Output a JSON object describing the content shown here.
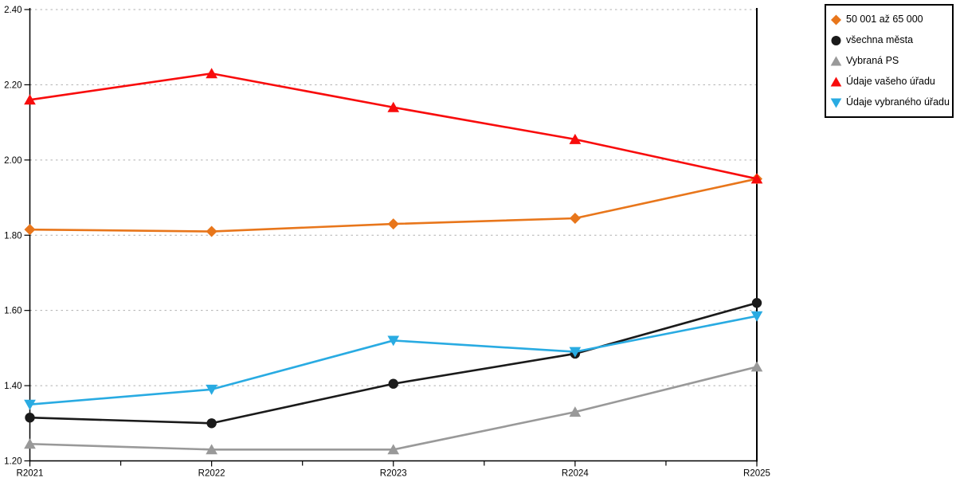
{
  "chart_data": {
    "type": "line",
    "categories": [
      "R2021",
      "R2022",
      "R2023",
      "R2024",
      "R2025"
    ],
    "series": [
      {
        "name": "50 001 až 65 000",
        "color": "#E8761B",
        "marker": "diamond",
        "values": [
          1.815,
          1.81,
          1.83,
          1.845,
          1.95
        ]
      },
      {
        "name": "všechna města",
        "color": "#1A1A1A",
        "marker": "circle",
        "values": [
          1.315,
          1.3,
          1.405,
          1.485,
          1.62
        ]
      },
      {
        "name": "Vybraná PS",
        "color": "#999999",
        "marker": "triangle-up",
        "values": [
          1.245,
          1.23,
          1.23,
          1.33,
          1.45
        ]
      },
      {
        "name": "Údaje vašeho úřadu",
        "color": "#F80C0C",
        "marker": "triangle-up",
        "values": [
          2.16,
          2.23,
          2.14,
          2.055,
          1.95
        ]
      },
      {
        "name": "Údaje vybraného úřadu",
        "color": "#29ABE2",
        "marker": "triangle-down",
        "values": [
          1.35,
          1.39,
          1.52,
          1.49,
          1.585
        ]
      }
    ],
    "ylim": [
      1.2,
      2.4
    ],
    "ytick_step": 0.2,
    "ytick_labels": [
      "1.20",
      "1.40",
      "1.60",
      "1.80",
      "2.00",
      "2.20",
      "2.40"
    ],
    "xlabel": "",
    "ylabel": "",
    "title": "",
    "grid": "horizontal-dotted",
    "grid_color": "#B0B0B0",
    "axis_color": "#000000",
    "legend_position": "outside-top-right",
    "minor_xticks_between_categories": true
  },
  "legend": {
    "items": [
      {
        "label": "50 001 až 65 000"
      },
      {
        "label": "všechna města"
      },
      {
        "label": "Vybraná PS"
      },
      {
        "label": "Údaje vašeho úřadu"
      },
      {
        "label": "Údaje vybraného úřadu"
      }
    ]
  }
}
